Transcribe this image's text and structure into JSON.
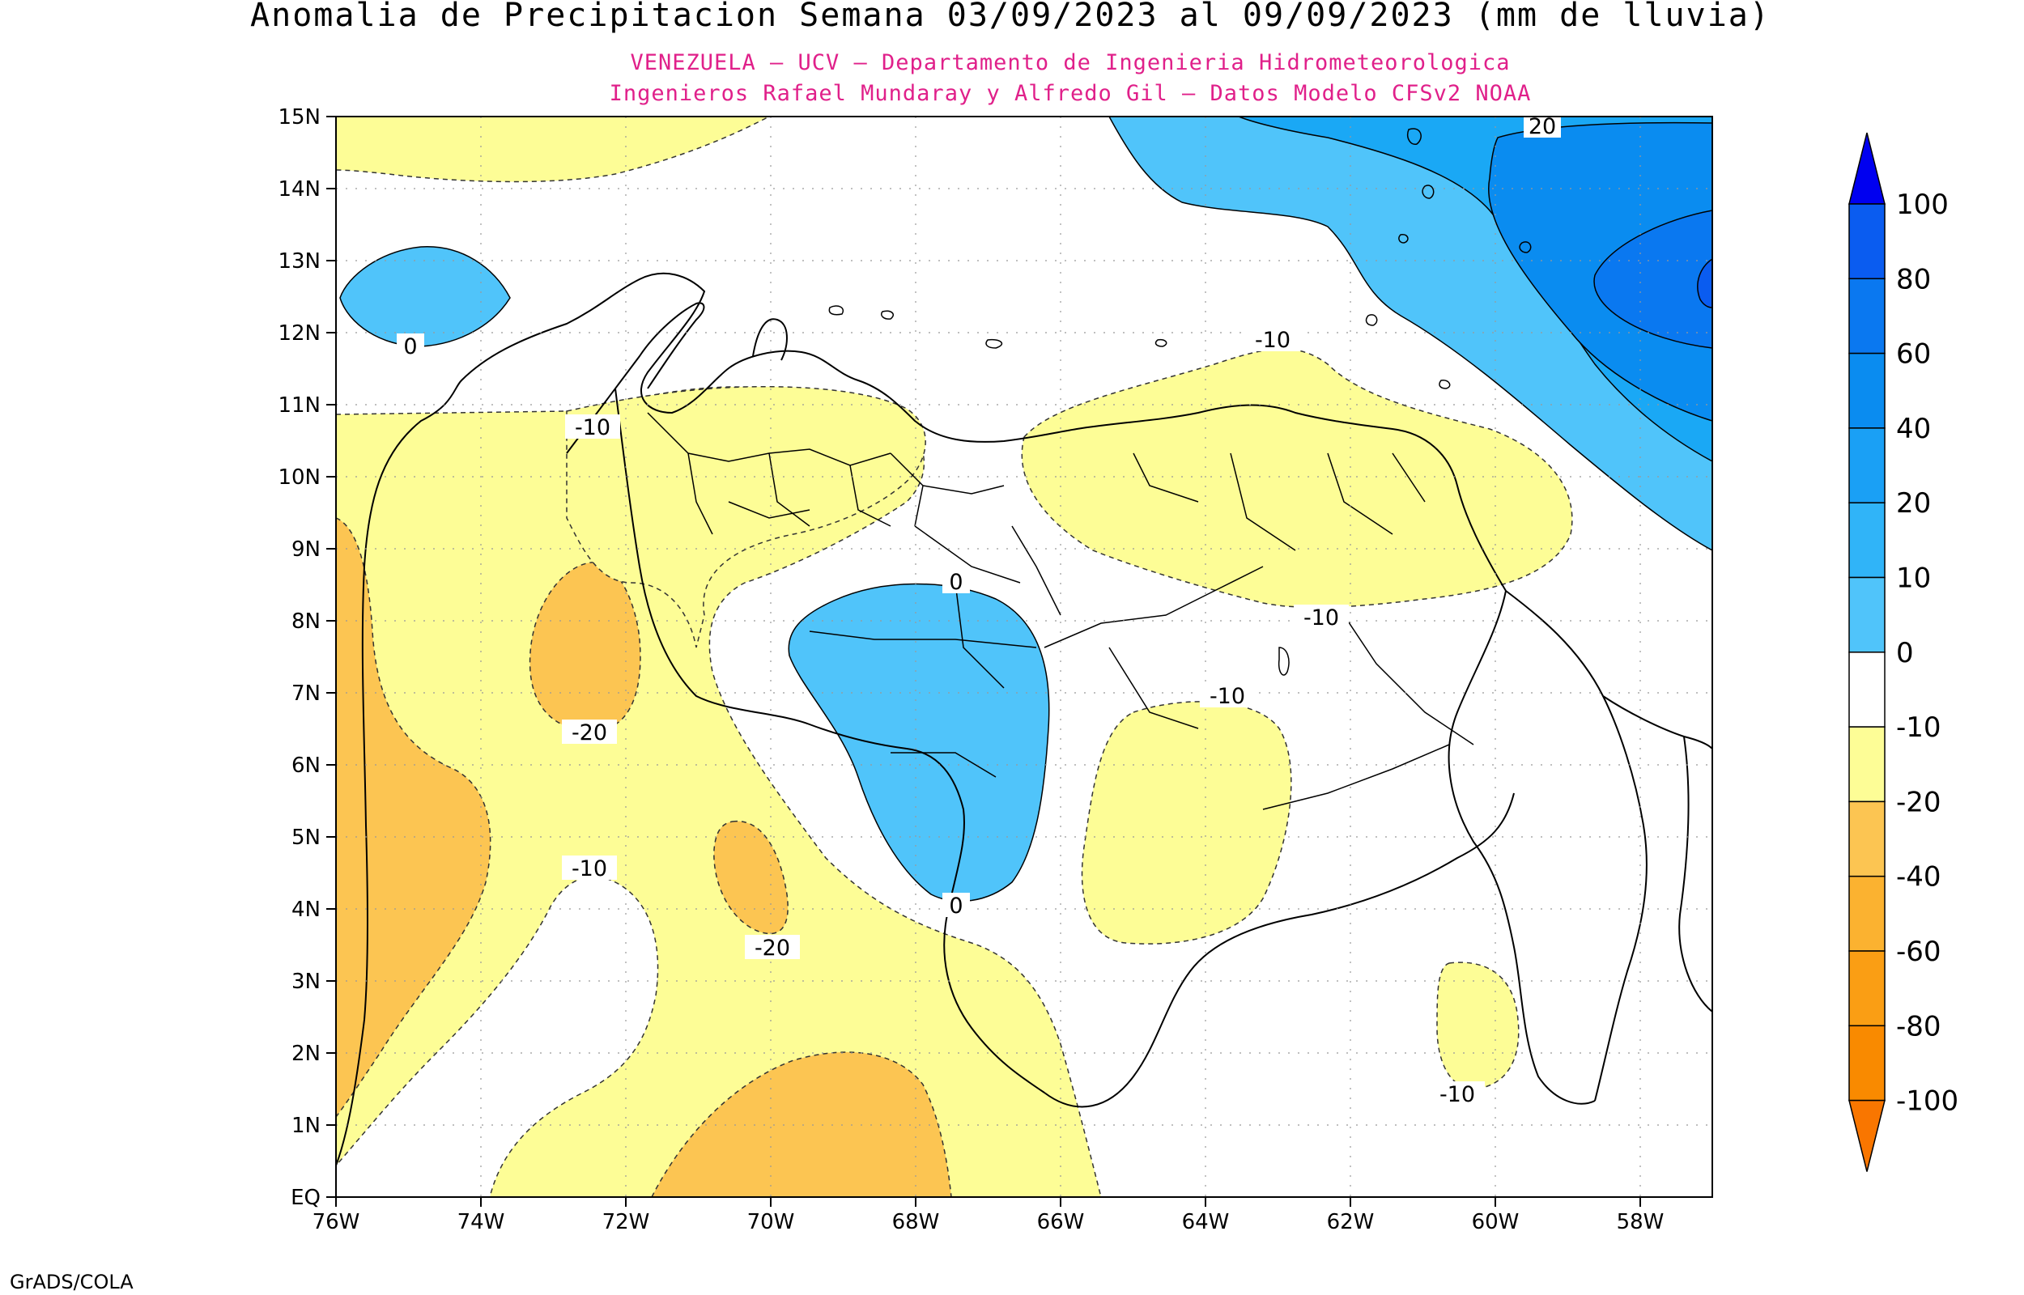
{
  "title": "Anomalia de Precipitacion Semana 03/09/2023 al 09/09/2023 (mm de lluvia)",
  "subtitle_1": "VENEZUELA — UCV — Departamento de Ingenieria Hidrometeorologica",
  "subtitle_2": "Ingenieros Rafael Mundaray y Alfredo Gil — Datos Modelo CFSv2 NOAA",
  "footer": "GrADS/COLA",
  "lat_labels": [
    "15N",
    "14N",
    "13N",
    "12N",
    "11N",
    "10N",
    "9N",
    "8N",
    "7N",
    "6N",
    "5N",
    "4N",
    "3N",
    "2N",
    "1N",
    "EQ"
  ],
  "lon_labels": [
    "76W",
    "74W",
    "72W",
    "70W",
    "68W",
    "66W",
    "64W",
    "62W",
    "60W",
    "58W"
  ],
  "contour_labels": [
    {
      "text": "20",
      "region": "northeast"
    },
    {
      "text": "-10",
      "region": "north-central"
    },
    {
      "text": "0",
      "region": "northwest-ocean"
    },
    {
      "text": "-10",
      "region": "andes"
    },
    {
      "text": "0",
      "region": "apure-north"
    },
    {
      "text": "-10",
      "region": "llanos-east"
    },
    {
      "text": "-10",
      "region": "bolivar"
    },
    {
      "text": "-20",
      "region": "colombia-west"
    },
    {
      "text": "-10",
      "region": "colombia-south"
    },
    {
      "text": "-20",
      "region": "colombia-center"
    },
    {
      "text": "0",
      "region": "amazonas"
    },
    {
      "text": "-10",
      "region": "guyana"
    }
  ],
  "colorbar": {
    "labels": [
      "100",
      "80",
      "60",
      "40",
      "20",
      "10",
      "0",
      "-10",
      "-20",
      "-40",
      "-60",
      "-80",
      "-100"
    ],
    "colors": [
      "#0000f0",
      "#0a5cf0",
      "#0a78f0",
      "#0a8cf0",
      "#1aa0f5",
      "#30b4f8",
      "#50c4fa",
      "#ffffff",
      "#fdfd96",
      "#fcc552",
      "#fbb230",
      "#fa9e14",
      "#f98a00",
      "#f97600"
    ]
  },
  "palette": {
    "neg_10": "#fdfd96",
    "neg_20": "#fcc552",
    "pos_0": "#50c4fa",
    "pos_10": "#1aa8f5",
    "pos_20": "#0a8cf0",
    "subtitle": "#e0208a"
  }
}
